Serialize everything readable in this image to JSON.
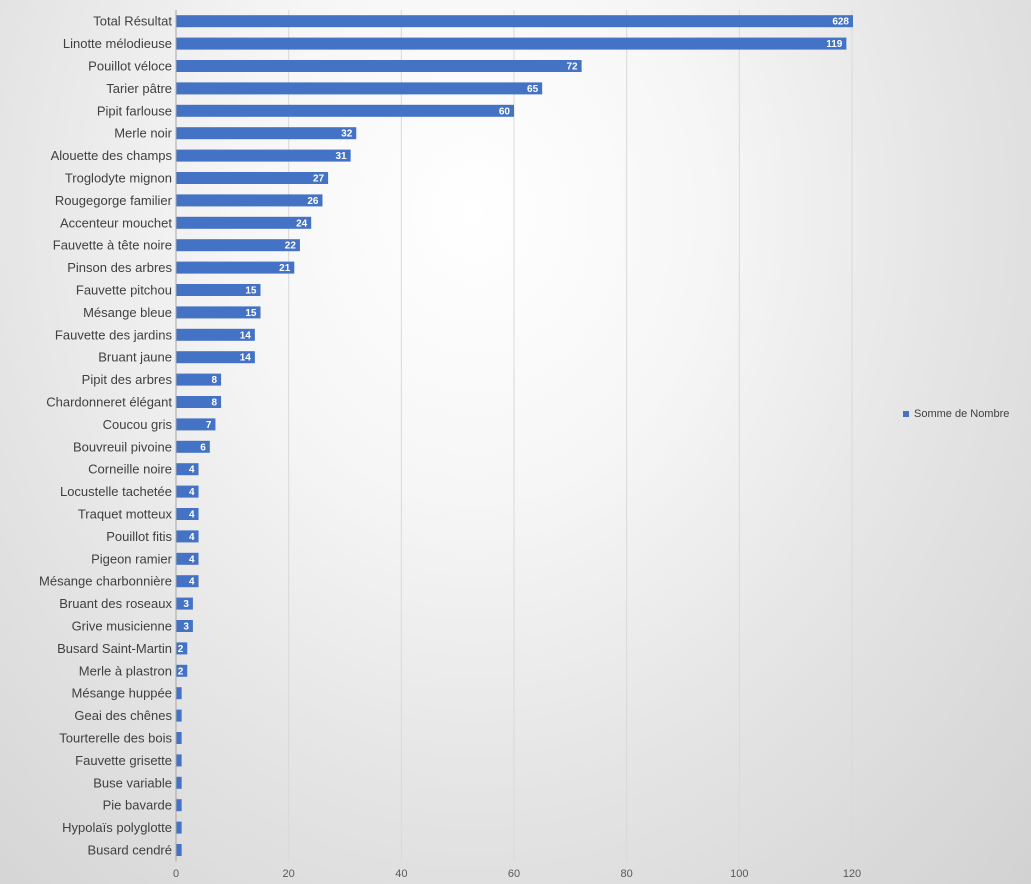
{
  "chart_data": {
    "type": "bar",
    "orientation": "horizontal",
    "categories": [
      "Total Résultat",
      "Linotte mélodieuse",
      "Pouillot véloce",
      "Tarier pâtre",
      "Pipit farlouse",
      "Merle noir",
      "Alouette des champs",
      "Troglodyte mignon",
      "Rougegorge familier",
      "Accenteur mouchet",
      "Fauvette à tête noire",
      "Pinson des arbres",
      "Fauvette pitchou",
      "Mésange bleue",
      "Fauvette des jardins",
      "Bruant jaune",
      "Pipit des arbres",
      "Chardonneret élégant",
      "Coucou gris",
      "Bouvreuil pivoine",
      "Corneille noire",
      "Locustelle tachetée",
      "Traquet motteux",
      "Pouillot fitis",
      "Pigeon ramier",
      "Mésange charbonnière",
      "Bruant des roseaux",
      "Grive musicienne",
      "Busard Saint-Martin",
      "Merle à plastron",
      "Mésange huppée",
      "Geai des chênes",
      "Tourterelle des bois",
      "Fauvette grisette",
      "Buse variable",
      "Pie bavarde",
      "Hypolaïs polyglotte",
      "Busard cendré"
    ],
    "series": [
      {
        "name": "Somme de Nombre",
        "color": "#4472c4",
        "values": [
          628,
          119,
          72,
          65,
          60,
          32,
          31,
          27,
          26,
          24,
          22,
          21,
          15,
          15,
          14,
          14,
          8,
          8,
          7,
          6,
          4,
          4,
          4,
          4,
          4,
          4,
          3,
          3,
          2,
          2,
          1,
          1,
          1,
          1,
          1,
          1,
          1,
          1
        ],
        "data_labels": [
          "628",
          "119",
          "72",
          "65",
          "60",
          "32",
          "31",
          "27",
          "26",
          "24",
          "22",
          "21",
          "15",
          "15",
          "14",
          "14",
          "8",
          "8",
          "7",
          "6",
          "4",
          "4",
          "4",
          "4",
          "4",
          "4",
          "3",
          "3",
          "2",
          "2",
          "",
          "",
          "",
          "",
          "",
          "",
          "",
          ""
        ]
      }
    ],
    "x_ticks": [
      "0",
      "20",
      "40",
      "60",
      "80",
      "100",
      "120"
    ],
    "xlim": [
      0,
      120
    ],
    "title": "",
    "xlabel": "",
    "ylabel": "",
    "grid": true,
    "legend_position": "right",
    "total_bar_clipped": true
  }
}
